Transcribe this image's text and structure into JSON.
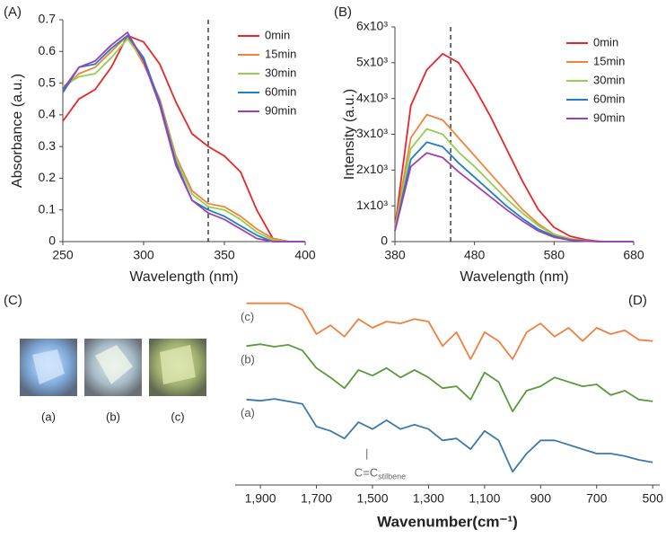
{
  "chart_data": [
    {
      "type": "line",
      "panel": "(A)",
      "xlabel": "Wavelength (nm)",
      "ylabel": "Absorbance (a.u.)",
      "xlim": [
        250,
        400
      ],
      "xticks": [
        250,
        300,
        350,
        400
      ],
      "ylim": [
        0,
        0.7
      ],
      "yticks": [
        0,
        0.1,
        0.2,
        0.3,
        0.4,
        0.5,
        0.6,
        0.7
      ],
      "vline": 340,
      "legend": "upper right",
      "grid": false,
      "x": [
        250,
        260,
        270,
        280,
        290,
        300,
        310,
        320,
        330,
        340,
        350,
        360,
        370,
        380,
        390,
        400
      ],
      "series": [
        {
          "name": "0min",
          "color": "#e8262a",
          "values": [
            0.38,
            0.45,
            0.48,
            0.55,
            0.65,
            0.63,
            0.56,
            0.44,
            0.34,
            0.3,
            0.27,
            0.22,
            0.1,
            0.01,
            0,
            0
          ]
        },
        {
          "name": "15min",
          "color": "#f5823a",
          "values": [
            0.48,
            0.53,
            0.55,
            0.6,
            0.65,
            0.56,
            0.45,
            0.27,
            0.16,
            0.12,
            0.11,
            0.08,
            0.04,
            0.01,
            0,
            0
          ]
        },
        {
          "name": "30min",
          "color": "#92d050",
          "values": [
            0.49,
            0.52,
            0.53,
            0.58,
            0.64,
            0.57,
            0.44,
            0.26,
            0.15,
            0.11,
            0.1,
            0.07,
            0.03,
            0.005,
            0,
            0
          ]
        },
        {
          "name": "60min",
          "color": "#1f7ec4",
          "values": [
            0.47,
            0.55,
            0.56,
            0.61,
            0.65,
            0.58,
            0.44,
            0.25,
            0.13,
            0.1,
            0.08,
            0.05,
            0.02,
            0,
            0,
            0
          ]
        },
        {
          "name": "90min",
          "color": "#a040b0",
          "values": [
            0.48,
            0.55,
            0.57,
            0.62,
            0.66,
            0.57,
            0.43,
            0.24,
            0.13,
            0.09,
            0.07,
            0.04,
            0.01,
            0,
            0,
            0
          ]
        }
      ]
    },
    {
      "type": "line",
      "panel": "(B)",
      "xlabel": "Wavelength (nm)",
      "ylabel": "Intensity (a.u.)",
      "xlim": [
        380,
        680
      ],
      "xticks": [
        380,
        480,
        580,
        680
      ],
      "ylim": [
        0,
        6000
      ],
      "yticks": [
        0,
        {
          "value": 1000,
          "label": "1x10³"
        },
        {
          "value": 2000,
          "label": "2x10³"
        },
        {
          "value": 3000,
          "label": "3x10³"
        },
        {
          "value": 4000,
          "label": "4x10³"
        },
        {
          "value": 5000,
          "label": "5x10³"
        },
        {
          "value": 6000,
          "label": "6x10³"
        }
      ],
      "vline": 450,
      "legend": "upper right",
      "grid": false,
      "x": [
        380,
        400,
        420,
        440,
        460,
        480,
        500,
        520,
        540,
        560,
        580,
        600,
        620,
        640,
        660,
        680
      ],
      "series": [
        {
          "name": "0min",
          "color": "#e8262a",
          "values": [
            400,
            3800,
            4800,
            5250,
            5000,
            4300,
            3500,
            2600,
            1700,
            900,
            400,
            150,
            50,
            0,
            0,
            0
          ]
        },
        {
          "name": "15min",
          "color": "#f5823a",
          "values": [
            400,
            2900,
            3550,
            3400,
            2900,
            2400,
            1900,
            1400,
            900,
            500,
            200,
            80,
            20,
            0,
            0,
            0
          ]
        },
        {
          "name": "30min",
          "color": "#92d050",
          "values": [
            350,
            2600,
            3150,
            3000,
            2500,
            2100,
            1650,
            1200,
            800,
            450,
            180,
            70,
            20,
            0,
            0,
            0
          ]
        },
        {
          "name": "60min",
          "color": "#1f7ec4",
          "values": [
            300,
            2300,
            2780,
            2650,
            2200,
            1800,
            1400,
            1000,
            650,
            350,
            150,
            50,
            15,
            0,
            0,
            0
          ]
        },
        {
          "name": "90min",
          "color": "#a040b0",
          "values": [
            300,
            2100,
            2480,
            2350,
            1950,
            1600,
            1250,
            900,
            580,
            300,
            120,
            40,
            10,
            0,
            0,
            0
          ]
        }
      ]
    },
    {
      "type": "line",
      "panel": "(D)",
      "xlabel": "Wavenumber(cm⁻¹)",
      "xlim": [
        1990,
        475
      ],
      "ylim": [
        0,
        3
      ],
      "xticks": [
        {
          "value": 1900,
          "label": "1,900"
        },
        {
          "value": 1700,
          "label": "1,700"
        },
        {
          "value": 1500,
          "label": "1,500"
        },
        {
          "value": 1300,
          "label": "1,300"
        },
        {
          "value": 1100,
          "label": "1,100"
        },
        900,
        700,
        500
      ],
      "annotation": {
        "text": "C=C",
        "sub": "stilbene",
        "x": 1520
      },
      "x": [
        1950,
        1900,
        1850,
        1800,
        1750,
        1700,
        1650,
        1600,
        1550,
        1500,
        1450,
        1400,
        1350,
        1300,
        1250,
        1200,
        1150,
        1100,
        1050,
        1000,
        950,
        900,
        850,
        800,
        750,
        700,
        650,
        600,
        550,
        500
      ],
      "series": [
        {
          "name": "(c)",
          "color": "#f08040",
          "values": [
            2.89,
            2.89,
            2.89,
            2.89,
            2.79,
            2.4,
            2.54,
            2.36,
            2.64,
            2.5,
            2.6,
            2.57,
            2.64,
            2.6,
            2.21,
            2.43,
            2.0,
            2.43,
            2.29,
            2.0,
            2.43,
            2.57,
            2.36,
            2.5,
            2.29,
            2.5,
            2.4,
            2.46,
            2.31,
            2.29
          ]
        },
        {
          "name": "(b)",
          "color": "#5a9a3a",
          "values": [
            2.21,
            2.24,
            2.2,
            2.23,
            2.14,
            1.86,
            1.71,
            1.54,
            1.83,
            1.74,
            1.86,
            1.71,
            1.83,
            1.71,
            1.54,
            1.57,
            1.36,
            1.79,
            1.64,
            1.17,
            1.5,
            1.57,
            1.71,
            1.64,
            1.57,
            1.6,
            1.43,
            1.5,
            1.36,
            1.33
          ]
        },
        {
          "name": "(a)",
          "color": "#3a7aa8",
          "values": [
            1.36,
            1.34,
            1.37,
            1.33,
            1.29,
            0.93,
            0.86,
            0.74,
            1.0,
            0.89,
            1.03,
            0.89,
            0.96,
            0.89,
            0.71,
            0.74,
            0.57,
            0.86,
            0.71,
            0.21,
            0.5,
            0.71,
            0.71,
            0.64,
            0.57,
            0.5,
            0.5,
            0.46,
            0.4,
            0.36
          ]
        }
      ]
    }
  ],
  "panel_c": {
    "label": "(C)",
    "captions": [
      "(a)",
      "(b)",
      "(c)"
    ]
  }
}
